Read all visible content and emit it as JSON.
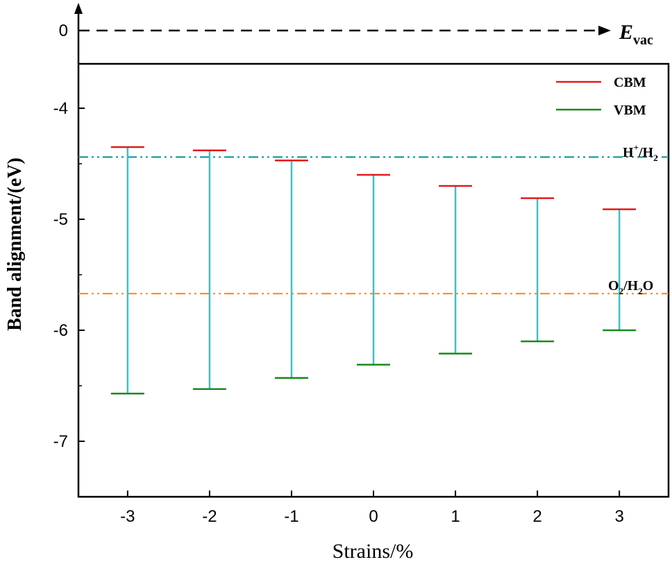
{
  "chart_data": {
    "type": "band-alignment",
    "xlabel": "Strains/%",
    "ylabel": "Band alignment/(eV)",
    "categories": [
      "-3",
      "-2",
      "-1",
      "0",
      "1",
      "2",
      "3"
    ],
    "x": [
      -3,
      -2,
      -1,
      0,
      1,
      2,
      3
    ],
    "xlim": [
      -3.6,
      3.6
    ],
    "ylim": [
      -7.5,
      -3.6
    ],
    "yticks": [
      -4,
      -5,
      -6,
      -7
    ],
    "series": [
      {
        "name": "CBM",
        "color": "#e31a1c",
        "values": [
          -4.35,
          -4.38,
          -4.47,
          -4.6,
          -4.7,
          -4.81,
          -4.91
        ]
      },
      {
        "name": "VBM",
        "color": "#1a8a1a",
        "values": [
          -6.57,
          -6.53,
          -6.43,
          -6.31,
          -6.21,
          -6.1,
          -6.0
        ]
      }
    ],
    "gap_line_color": "#2ec7cf",
    "reference_lines": [
      {
        "label_main": "H",
        "label_sup": "+",
        "label_mid": "/H",
        "label_sub": "2",
        "value": -4.44,
        "color": "#1f9a9a",
        "style": "dash-dot-dot"
      },
      {
        "label_main": "O",
        "label_sub": "2",
        "label_mid": "/H",
        "label_sub2": "2",
        "label_tail": "O",
        "value": -5.67,
        "color": "#ff8c1a",
        "style": "dash-dot-dot"
      }
    ],
    "vacuum": {
      "tick": "0",
      "value": 0,
      "label_main": "E",
      "label_sub": "vac"
    },
    "legend_position": "top-right"
  }
}
